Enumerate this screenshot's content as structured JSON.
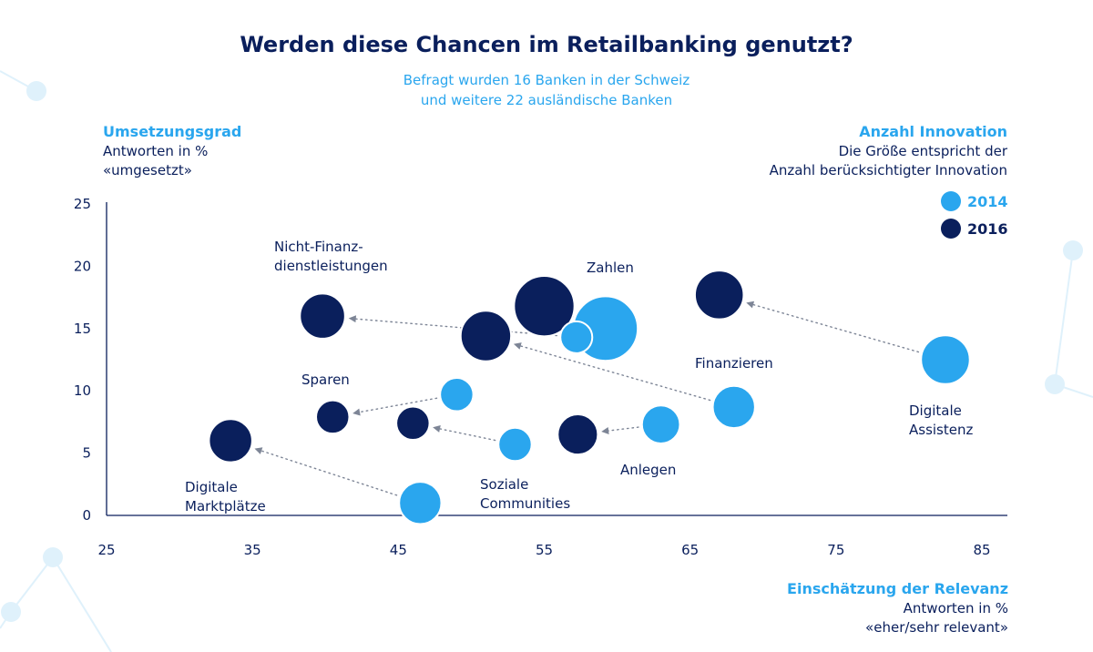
{
  "chart_data": {
    "type": "bubble",
    "title": "Werden diese Chancen im Retailbanking genutzt?",
    "subtitle_lines": [
      "Befragt wurden 16 Banken in der Schweiz",
      "und weitere 22 ausländische Banken"
    ],
    "ylabel": {
      "head": "Umsetzungsgrad",
      "lines": [
        "Antworten in %",
        "«umgesetzt»"
      ]
    },
    "xlabel": {
      "head": "Einschätzung der Relevanz",
      "lines": [
        "Antworten in %",
        "«eher/sehr relevant»"
      ]
    },
    "size_legend": {
      "head": "Anzahl Innovation",
      "lines": [
        "Die Größe entspricht der",
        "Anzahl berücksichtigter Innovation"
      ]
    },
    "xlim": [
      25,
      87
    ],
    "ylim": [
      0,
      25
    ],
    "xticks": [
      25,
      35,
      45,
      55,
      65,
      75,
      85
    ],
    "yticks": [
      0,
      5,
      10,
      15,
      20,
      25
    ],
    "grid": false,
    "legend_position": "top-right",
    "series": [
      {
        "name": "2014",
        "color": "#2aa6ee"
      },
      {
        "name": "2016",
        "color": "#0a1f5c"
      }
    ],
    "points": [
      {
        "label": "Digitale Marktplätze",
        "y2014": {
          "x": 46.5,
          "y": 1.0,
          "size": 2.1
        },
        "y2016": {
          "x": 33.5,
          "y": 6.0,
          "size": 2.2
        }
      },
      {
        "label": "Nicht-Finanz-dienstleistungen",
        "y2014": {
          "x": 57.2,
          "y": 14.3,
          "size": 1.2
        },
        "y2016": {
          "x": 39.8,
          "y": 16.0,
          "size": 2.4
        }
      },
      {
        "label": "Sparen",
        "y2014": {
          "x": 49.0,
          "y": 9.7,
          "size": 1.3
        },
        "y2016": {
          "x": 40.5,
          "y": 7.9,
          "size": 1.3
        }
      },
      {
        "label": "Soziale Communities",
        "y2014": {
          "x": 53.0,
          "y": 5.7,
          "size": 1.3
        },
        "y2016": {
          "x": 46.0,
          "y": 7.4,
          "size": 1.3
        }
      },
      {
        "label": "Zahlen",
        "y2014": {
          "x": 59.2,
          "y": 15.0,
          "size": 4.9
        },
        "y2016": {
          "x": 55.0,
          "y": 16.8,
          "size": 4.3
        }
      },
      {
        "label": "Finanzieren",
        "y2014": {
          "x": 68.0,
          "y": 8.7,
          "size": 2.1
        },
        "y2016": {
          "x": 51.0,
          "y": 14.4,
          "size": 3.0
        }
      },
      {
        "label": "Anlegen",
        "y2014": {
          "x": 63.0,
          "y": 7.3,
          "size": 1.7
        },
        "y2016": {
          "x": 57.3,
          "y": 6.5,
          "size": 1.9
        }
      },
      {
        "label": "Digitale Assistenz",
        "y2014": {
          "x": 82.5,
          "y": 12.5,
          "size": 2.8
        },
        "y2016": {
          "x": 67.0,
          "y": 17.7,
          "size": 2.8
        }
      }
    ]
  }
}
